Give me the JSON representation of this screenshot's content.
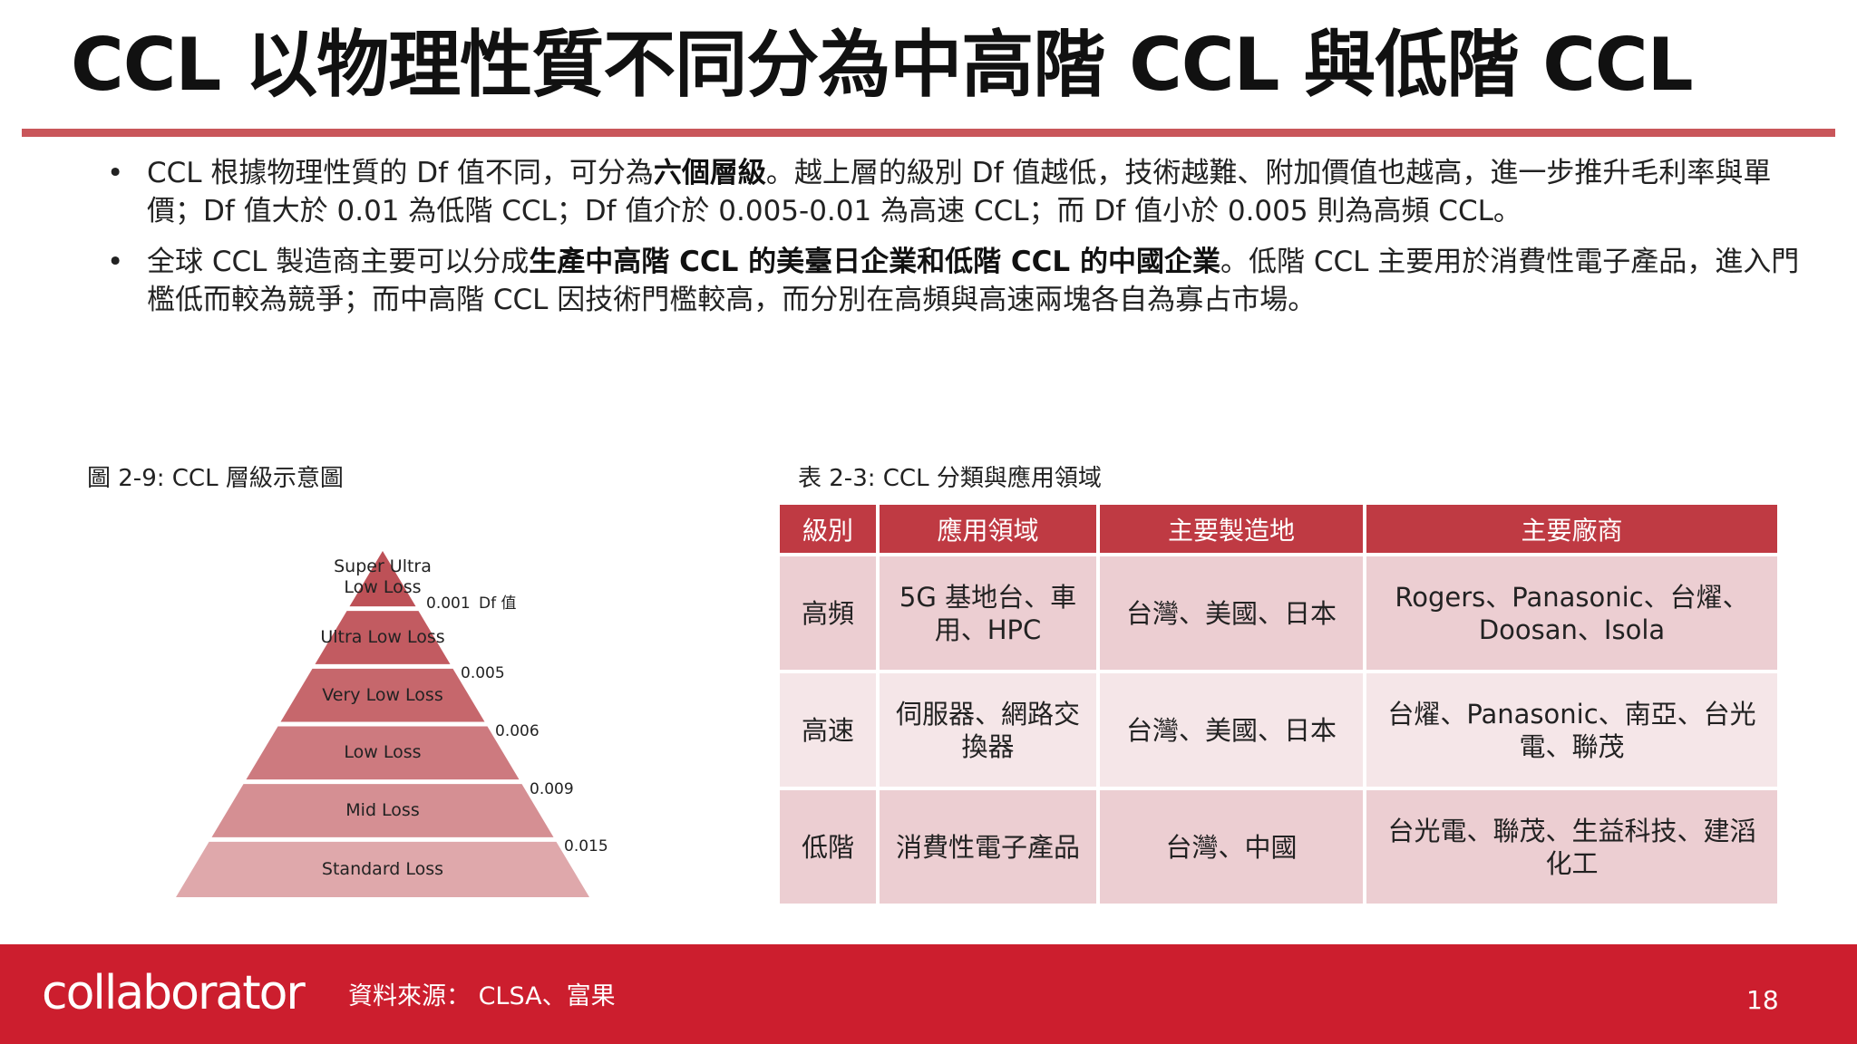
{
  "slide": {
    "title": "CCL 以物理性質不同分為中高階 CCL 與低階 CCL"
  },
  "bullets": [
    {
      "pre": "CCL 根據物理性質的 Df 值不同，可分為",
      "bold": "六個層級",
      "post": "。越上層的級別 Df 值越低，技術越難、附加價值也越高，進一步推升毛利率與單價；Df 值大於 0.01 為低階 CCL；Df 值介於 0.005-0.01 為高速 CCL；而 Df 值小於 0.005 則為高頻 CCL。"
    },
    {
      "pre": "全球 CCL 製造商主要可以分成",
      "bold": "生產中高階 CCL 的美臺日企業和低階 CCL 的中國企業",
      "post": "。低階 CCL 主要用於消費性電子產品，進入門檻低而較為競爭；而中高階 CCL 因技術門檻較高，而分別在高頻與高速兩塊各自為寡占市場。"
    }
  ],
  "figure": {
    "caption": "圖 2-9: CCL 層級示意圖",
    "levels": [
      {
        "label": "Super Ultra\nLow Loss",
        "color": "#bd5157"
      },
      {
        "label": "Ultra Low Loss",
        "color": "#c25b61"
      },
      {
        "label": "Very Low Loss",
        "color": "#c6676c"
      },
      {
        "label": "Low Loss",
        "color": "#cd7a7f"
      },
      {
        "label": "Mid Loss",
        "color": "#d58f93"
      },
      {
        "label": "Standard Loss",
        "color": "#dfa8ab"
      }
    ],
    "df_title": "Df 值",
    "df_values": [
      "0.001",
      "0.005",
      "0.006",
      "0.009",
      "0.015"
    ]
  },
  "table": {
    "caption": "表 2-3: CCL 分類與應用領域",
    "headers": [
      "級別",
      "應用領域",
      "主要製造地",
      "主要廠商"
    ],
    "rows": [
      [
        "高頻",
        "5G 基地台、車用、HPC",
        "台灣、美國、日本",
        "Rogers、Panasonic、台燿、Doosan、Isola"
      ],
      [
        "高速",
        "伺服器、網路交換器",
        "台灣、美國、日本",
        "台燿、Panasonic、南亞、台光電、聯茂"
      ],
      [
        "低階",
        "消費性電子產品",
        "台灣、中國",
        "台光電、聯茂、生益科技、建滔化工"
      ]
    ]
  },
  "footer": {
    "logo": "collaborator",
    "source": "資料來源： CLSA、富果",
    "page_number": "18"
  }
}
